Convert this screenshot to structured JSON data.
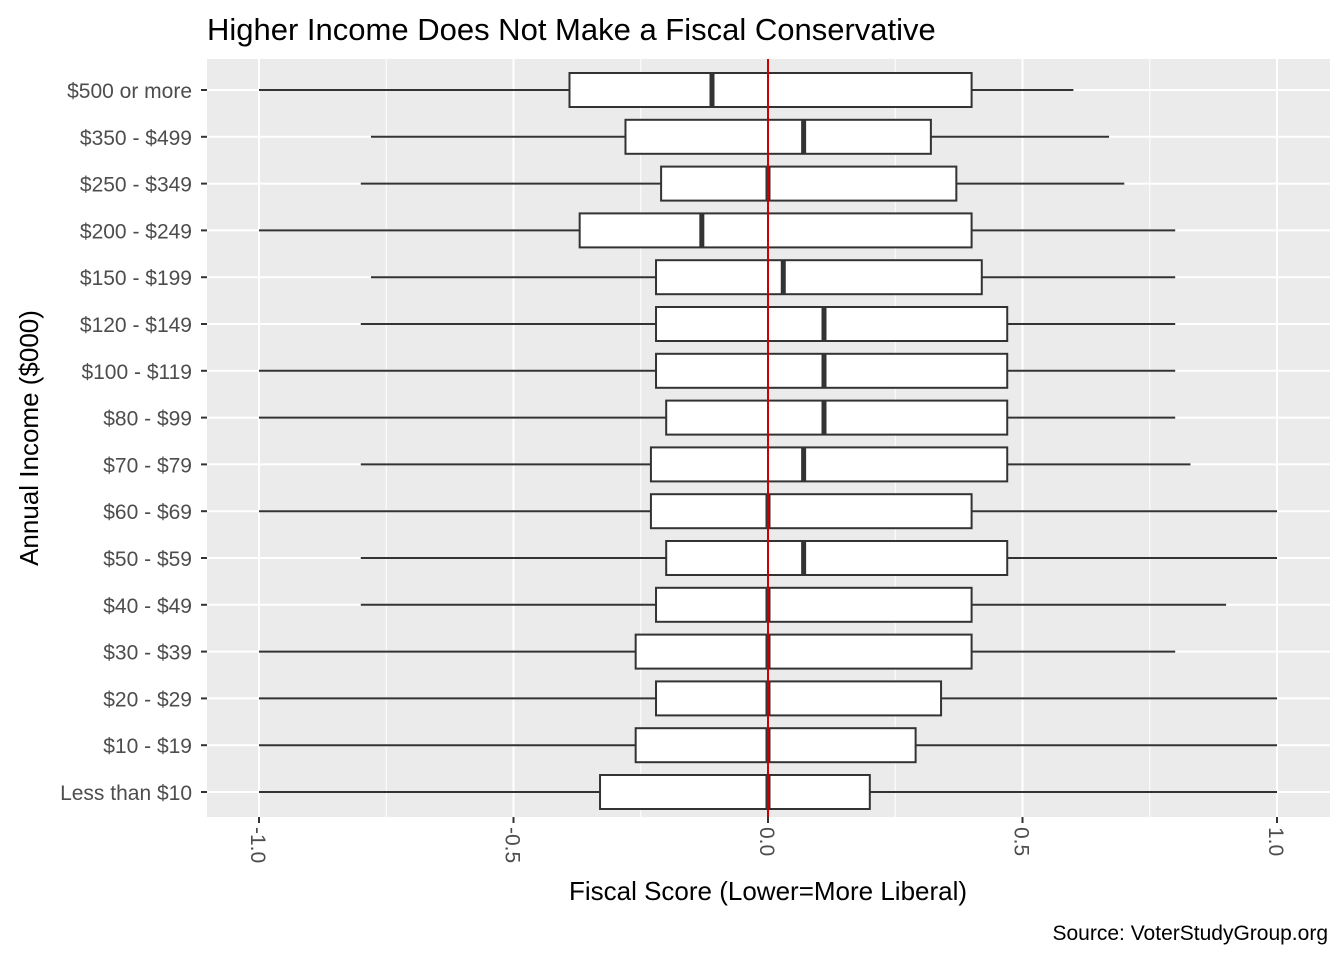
{
  "chart_data": {
    "type": "boxplot",
    "orientation": "horizontal",
    "title": "Higher Income Does  Not Make a Fiscal Conservative",
    "xlabel": "Fiscal Score (Lower=More Liberal)",
    "ylabel": "Annual Income ($000)",
    "caption": "Source: VoterStudyGroup.org",
    "xlim": [
      -1.1,
      1.05
    ],
    "x_ticks": [
      -1.0,
      -0.5,
      0.0,
      0.5,
      1.0
    ],
    "x_tick_labels": [
      "-1.0",
      "-0.5",
      "0.0",
      "0.5",
      "1.0"
    ],
    "reference_line": {
      "x": 0.0,
      "color": "#cc0000"
    },
    "grid": true,
    "colors": {
      "panel": "#ebebeb",
      "grid": "#ffffff",
      "box_fill": "#ffffff",
      "box_stroke": "#333333"
    },
    "categories": [
      "$500 or more",
      "$350 - $499",
      "$250 - $349",
      "$200 - $249",
      "$150 - $199",
      "$120 - $149",
      "$100 - $119",
      "$80 - $99",
      "$70 - $79",
      "$60 - $69",
      "$50 - $59",
      "$40 - $49",
      "$30 - $39",
      "$20 - $29",
      "$10 - $19",
      "Less than $10"
    ],
    "boxes": [
      {
        "min": -1.0,
        "q1": -0.39,
        "median": -0.11,
        "q3": 0.4,
        "max": 0.6
      },
      {
        "min": -0.78,
        "q1": -0.28,
        "median": 0.07,
        "q3": 0.32,
        "max": 0.67
      },
      {
        "min": -0.8,
        "q1": -0.21,
        "median": 0.0,
        "q3": 0.37,
        "max": 0.7
      },
      {
        "min": -1.0,
        "q1": -0.37,
        "median": -0.13,
        "q3": 0.4,
        "max": 0.8
      },
      {
        "min": -0.78,
        "q1": -0.22,
        "median": 0.03,
        "q3": 0.42,
        "max": 0.8
      },
      {
        "min": -0.8,
        "q1": -0.22,
        "median": 0.11,
        "q3": 0.47,
        "max": 0.8
      },
      {
        "min": -1.0,
        "q1": -0.22,
        "median": 0.11,
        "q3": 0.47,
        "max": 0.8
      },
      {
        "min": -1.0,
        "q1": -0.2,
        "median": 0.11,
        "q3": 0.47,
        "max": 0.8
      },
      {
        "min": -0.8,
        "q1": -0.23,
        "median": 0.07,
        "q3": 0.47,
        "max": 0.83
      },
      {
        "min": -1.0,
        "q1": -0.23,
        "median": 0.0,
        "q3": 0.4,
        "max": 1.0
      },
      {
        "min": -0.8,
        "q1": -0.2,
        "median": 0.07,
        "q3": 0.47,
        "max": 1.0
      },
      {
        "min": -0.8,
        "q1": -0.22,
        "median": 0.0,
        "q3": 0.4,
        "max": 0.9
      },
      {
        "min": -1.0,
        "q1": -0.26,
        "median": 0.0,
        "q3": 0.4,
        "max": 0.8
      },
      {
        "min": -1.0,
        "q1": -0.22,
        "median": 0.0,
        "q3": 0.34,
        "max": 1.0
      },
      {
        "min": -1.0,
        "q1": -0.26,
        "median": 0.0,
        "q3": 0.29,
        "max": 1.0
      },
      {
        "min": -1.0,
        "q1": -0.33,
        "median": 0.0,
        "q3": 0.2,
        "max": 1.0
      }
    ]
  }
}
